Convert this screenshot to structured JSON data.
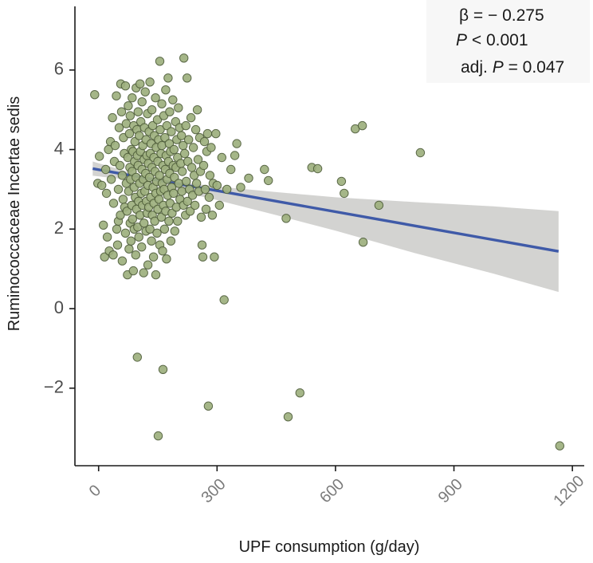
{
  "chart_data": {
    "type": "scatter",
    "xlabel": "UPF consumption (g/day)",
    "ylabel": "Ruminococcaceae Incertae sedis",
    "xlim": [
      -60,
      1230
    ],
    "ylim": [
      -3.95,
      7.6
    ],
    "x_ticks": [
      0,
      300,
      600,
      900,
      1200
    ],
    "y_ticks": [
      -2,
      0,
      2,
      4,
      6
    ],
    "y_tick_labels": [
      "−2",
      "0",
      "2",
      "4",
      "6"
    ],
    "grid": false,
    "colors": {
      "points_fill": "#9eb07e",
      "points_stroke": "#4f5e3a",
      "line": "#3f5aa8",
      "ribbon": "#c8c8c6"
    },
    "annotations": {
      "beta": "β = − 0.275",
      "p_label": "P",
      "p_value": "< 0.001",
      "adj_prefix": "adj.",
      "adj_p_label": "P",
      "adj_p_value": "= 0.047"
    },
    "regression": {
      "x_start": -15,
      "x_end": 1165,
      "y_start": 3.52,
      "y_end": 1.44,
      "ci_upper": [
        [
          -15,
          3.7
        ],
        [
          50,
          3.51
        ],
        [
          100,
          3.37
        ],
        [
          150,
          3.27
        ],
        [
          200,
          3.19
        ],
        [
          300,
          3.07
        ],
        [
          450,
          2.93
        ],
        [
          600,
          2.8
        ],
        [
          800,
          2.68
        ],
        [
          1000,
          2.57
        ],
        [
          1165,
          2.45
        ]
      ],
      "ci_lower": [
        [
          -15,
          3.34
        ],
        [
          50,
          3.27
        ],
        [
          100,
          3.19
        ],
        [
          150,
          3.08
        ],
        [
          200,
          2.96
        ],
        [
          300,
          2.73
        ],
        [
          450,
          2.35
        ],
        [
          600,
          1.96
        ],
        [
          800,
          1.4
        ],
        [
          1000,
          0.88
        ],
        [
          1165,
          0.42
        ]
      ]
    },
    "points": [
      [
        -10,
        5.38
      ],
      [
        -2,
        3.15
      ],
      [
        2,
        3.83
      ],
      [
        8,
        3.1
      ],
      [
        12,
        2.1
      ],
      [
        15,
        1.3
      ],
      [
        18,
        3.5
      ],
      [
        20,
        2.9
      ],
      [
        22,
        1.8
      ],
      [
        25,
        4.0
      ],
      [
        27,
        1.45
      ],
      [
        30,
        4.2
      ],
      [
        32,
        3.25
      ],
      [
        35,
        4.8
      ],
      [
        37,
        1.35
      ],
      [
        38,
        2.65
      ],
      [
        40,
        3.7
      ],
      [
        42,
        4.1
      ],
      [
        45,
        5.35
      ],
      [
        46,
        2.0
      ],
      [
        48,
        1.6
      ],
      [
        50,
        3.0
      ],
      [
        50,
        2.2
      ],
      [
        52,
        4.55
      ],
      [
        54,
        3.6
      ],
      [
        55,
        2.35
      ],
      [
        56,
        5.65
      ],
      [
        58,
        4.95
      ],
      [
        60,
        3.35
      ],
      [
        60,
        1.2
      ],
      [
        62,
        2.75
      ],
      [
        63,
        4.3
      ],
      [
        65,
        3.9
      ],
      [
        66,
        2.55
      ],
      [
        68,
        5.6
      ],
      [
        68,
        1.9
      ],
      [
        70,
        3.15
      ],
      [
        70,
        4.65
      ],
      [
        72,
        2.45
      ],
      [
        73,
        0.85
      ],
      [
        74,
        3.8
      ],
      [
        75,
        5.1
      ],
      [
        76,
        2.95
      ],
      [
        77,
        1.5
      ],
      [
        78,
        4.4
      ],
      [
        79,
        3.55
      ],
      [
        80,
        2.15
      ],
      [
        80,
        4.85
      ],
      [
        81,
        3.25
      ],
      [
        82,
        1.7
      ],
      [
        83,
        4.0
      ],
      [
        84,
        2.6
      ],
      [
        85,
        3.45
      ],
      [
        85,
        5.3
      ],
      [
        86,
        2.25
      ],
      [
        87,
        3.95
      ],
      [
        88,
        0.95
      ],
      [
        89,
        4.6
      ],
      [
        90,
        3.05
      ],
      [
        90,
        2.0
      ],
      [
        91,
        3.7
      ],
      [
        92,
        4.2
      ],
      [
        93,
        2.8
      ],
      [
        94,
        1.35
      ],
      [
        95,
        5.55
      ],
      [
        95,
        3.3
      ],
      [
        96,
        2.5
      ],
      [
        97,
        4.5
      ],
      [
        98,
        3.85
      ],
      [
        98,
        -1.22
      ],
      [
        99,
        2.05
      ],
      [
        100,
        3.6
      ],
      [
        100,
        4.95
      ],
      [
        101,
        2.7
      ],
      [
        102,
        1.8
      ],
      [
        103,
        4.35
      ],
      [
        104,
        3.15
      ],
      [
        105,
        5.65
      ],
      [
        105,
        2.35
      ],
      [
        106,
        3.95
      ],
      [
        107,
        4.7
      ],
      [
        108,
        2.9
      ],
      [
        109,
        1.55
      ],
      [
        110,
        3.5
      ],
      [
        110,
        5.2
      ],
      [
        111,
        2.6
      ],
      [
        112,
        4.1
      ],
      [
        113,
        3.25
      ],
      [
        114,
        0.9
      ],
      [
        115,
        3.75
      ],
      [
        115,
        2.15
      ],
      [
        116,
        4.55
      ],
      [
        117,
        2.95
      ],
      [
        118,
        5.45
      ],
      [
        119,
        3.4
      ],
      [
        120,
        1.95
      ],
      [
        120,
        4.25
      ],
      [
        121,
        2.7
      ],
      [
        122,
        3.85
      ],
      [
        123,
        2.4
      ],
      [
        124,
        4.9
      ],
      [
        125,
        3.1
      ],
      [
        125,
        1.1
      ],
      [
        126,
        3.65
      ],
      [
        127,
        2.55
      ],
      [
        128,
        4.45
      ],
      [
        129,
        3.3
      ],
      [
        130,
        5.7
      ],
      [
        130,
        2.0
      ],
      [
        131,
        3.9
      ],
      [
        132,
        2.8
      ],
      [
        133,
        4.15
      ],
      [
        134,
        1.7
      ],
      [
        135,
        3.55
      ],
      [
        135,
        5.0
      ],
      [
        136,
        2.35
      ],
      [
        137,
        4.6
      ],
      [
        138,
        3.05
      ],
      [
        139,
        1.3
      ],
      [
        140,
        3.8
      ],
      [
        140,
        2.65
      ],
      [
        141,
        4.35
      ],
      [
        142,
        2.2
      ],
      [
        143,
        3.45
      ],
      [
        144,
        5.3
      ],
      [
        145,
        2.9
      ],
      [
        145,
        0.85
      ],
      [
        146,
        4.05
      ],
      [
        147,
        3.2
      ],
      [
        148,
        1.9
      ],
      [
        149,
        4.75
      ],
      [
        150,
        2.5
      ],
      [
        150,
        3.7
      ],
      [
        151,
        -3.2
      ],
      [
        152,
        4.25
      ],
      [
        153,
        2.75
      ],
      [
        154,
        3.35
      ],
      [
        155,
        6.22
      ],
      [
        155,
        1.6
      ],
      [
        156,
        4.5
      ],
      [
        157,
        2.95
      ],
      [
        158,
        3.9
      ],
      [
        159,
        2.3
      ],
      [
        160,
        4.1
      ],
      [
        160,
        5.15
      ],
      [
        161,
        3.15
      ],
      [
        162,
        1.45
      ],
      [
        163,
        -1.53
      ],
      [
        163,
        3.6
      ],
      [
        164,
        2.6
      ],
      [
        165,
        4.85
      ],
      [
        166,
        3.0
      ],
      [
        167,
        2.0
      ],
      [
        168,
        4.3
      ],
      [
        169,
        3.5
      ],
      [
        170,
        5.5
      ],
      [
        170,
        2.45
      ],
      [
        171,
        3.85
      ],
      [
        172,
        1.25
      ],
      [
        173,
        4.6
      ],
      [
        174,
        3.25
      ],
      [
        175,
        2.85
      ],
      [
        176,
        5.8
      ],
      [
        177,
        3.7
      ],
      [
        178,
        2.2
      ],
      [
        179,
        4.15
      ],
      [
        180,
        3.4
      ],
      [
        180,
        4.95
      ],
      [
        181,
        2.65
      ],
      [
        182,
        3.95
      ],
      [
        183,
        1.7
      ],
      [
        184,
        4.45
      ],
      [
        185,
        3.05
      ],
      [
        186,
        2.4
      ],
      [
        188,
        5.25
      ],
      [
        189,
        3.6
      ],
      [
        190,
        2.9
      ],
      [
        191,
        4.0
      ],
      [
        192,
        3.3
      ],
      [
        193,
        1.95
      ],
      [
        195,
        4.7
      ],
      [
        196,
        3.55
      ],
      [
        197,
        2.55
      ],
      [
        198,
        4.25
      ],
      [
        200,
        3.8
      ],
      [
        200,
        2.2
      ],
      [
        202,
        5.05
      ],
      [
        203,
        3.15
      ],
      [
        205,
        4.55
      ],
      [
        206,
        2.75
      ],
      [
        208,
        3.65
      ],
      [
        210,
        4.35
      ],
      [
        211,
        2.95
      ],
      [
        212,
        3.45
      ],
      [
        214,
        4.1
      ],
      [
        215,
        2.6
      ],
      [
        216,
        6.3
      ],
      [
        218,
        3.9
      ],
      [
        220,
        2.35
      ],
      [
        221,
        4.6
      ],
      [
        222,
        3.2
      ],
      [
        224,
        5.8
      ],
      [
        225,
        2.7
      ],
      [
        226,
        3.7
      ],
      [
        228,
        4.25
      ],
      [
        230,
        3.0
      ],
      [
        232,
        2.45
      ],
      [
        234,
        4.8
      ],
      [
        236,
        3.55
      ],
      [
        238,
        2.85
      ],
      [
        240,
        4.05
      ],
      [
        242,
        3.35
      ],
      [
        244,
        2.6
      ],
      [
        246,
        4.5
      ],
      [
        248,
        3.15
      ],
      [
        250,
        5.0
      ],
      [
        252,
        3.75
      ],
      [
        254,
        2.95
      ],
      [
        256,
        4.3
      ],
      [
        258,
        3.45
      ],
      [
        260,
        2.3
      ],
      [
        262,
        1.6
      ],
      [
        264,
        1.3
      ],
      [
        266,
        3.6
      ],
      [
        268,
        4.2
      ],
      [
        270,
        3.0
      ],
      [
        272,
        2.5
      ],
      [
        274,
        3.95
      ],
      [
        276,
        4.4
      ],
      [
        278,
        -2.45
      ],
      [
        280,
        2.8
      ],
      [
        282,
        3.35
      ],
      [
        285,
        4.05
      ],
      [
        288,
        2.35
      ],
      [
        290,
        3.15
      ],
      [
        293,
        1.3
      ],
      [
        297,
        4.4
      ],
      [
        300,
        3.1
      ],
      [
        306,
        2.6
      ],
      [
        312,
        3.8
      ],
      [
        318,
        0.22
      ],
      [
        325,
        3.0
      ],
      [
        335,
        3.5
      ],
      [
        345,
        3.85
      ],
      [
        350,
        4.15
      ],
      [
        360,
        3.05
      ],
      [
        380,
        3.28
      ],
      [
        420,
        3.5
      ],
      [
        430,
        3.22
      ],
      [
        475,
        2.27
      ],
      [
        480,
        -2.72
      ],
      [
        510,
        -2.12
      ],
      [
        540,
        3.55
      ],
      [
        555,
        3.52
      ],
      [
        615,
        3.2
      ],
      [
        622,
        2.9
      ],
      [
        650,
        4.52
      ],
      [
        668,
        4.6
      ],
      [
        670,
        1.67
      ],
      [
        710,
        2.6
      ],
      [
        815,
        3.92
      ],
      [
        1168,
        -3.45
      ]
    ]
  }
}
